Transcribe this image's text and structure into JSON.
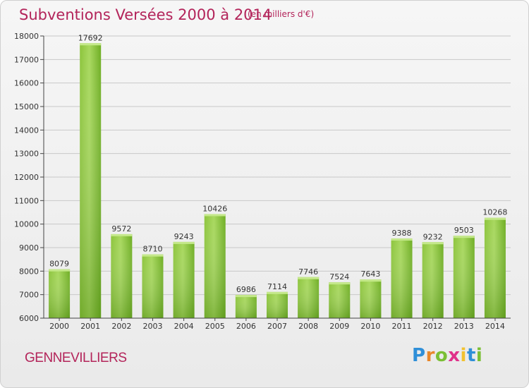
{
  "header": {
    "title": "Subventions Versées 2000 à 2014",
    "subtitle": "(en milliers d'€)"
  },
  "footer": {
    "city": "GENNEVILLIERS",
    "logo_text": "Proxiti"
  },
  "colors": {
    "title": "#b3245a",
    "bar_light": "#a6d65a",
    "bar_dark": "#5f9e1c",
    "axis": "#444444",
    "grid": "#c8c8c8"
  },
  "chart_data": {
    "type": "bar",
    "categories": [
      "2000",
      "2001",
      "2002",
      "2003",
      "2004",
      "2005",
      "2006",
      "2007",
      "2008",
      "2009",
      "2010",
      "2011",
      "2012",
      "2013",
      "2014"
    ],
    "values": [
      8079,
      17692,
      9572,
      8710,
      9243,
      10426,
      6986,
      7114,
      7746,
      7524,
      7643,
      9388,
      9232,
      9503,
      10268
    ],
    "ylim": [
      6000,
      18000
    ],
    "yticks": [
      6000,
      7000,
      8000,
      9000,
      10000,
      11000,
      12000,
      13000,
      14000,
      15000,
      16000,
      17000,
      18000
    ],
    "grid": true,
    "data_labels": true,
    "title": "Subventions Versées 2000 à 2014",
    "xlabel": "",
    "ylabel": ""
  }
}
